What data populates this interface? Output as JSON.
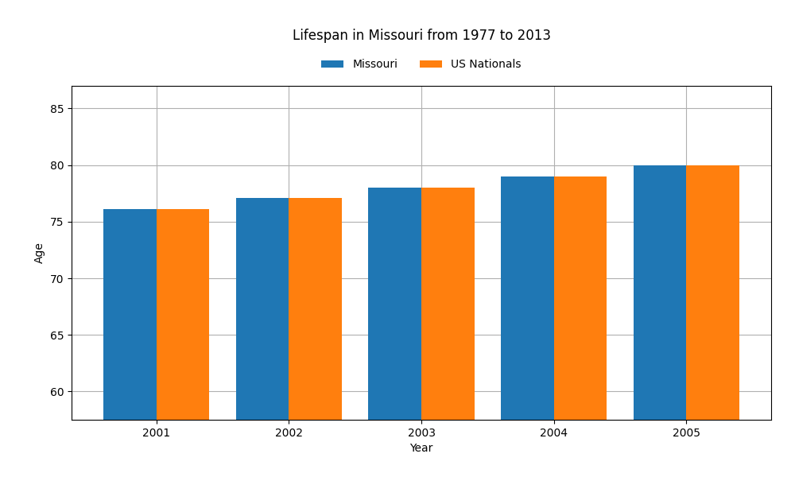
{
  "chart_data": {
    "type": "bar",
    "title": "Lifespan in Missouri from 1977 to 2013",
    "x_label": "Year",
    "y_label": "Age",
    "categories": [
      "2001",
      "2002",
      "2003",
      "2004",
      "2005"
    ],
    "series": [
      {
        "name": "Missouri",
        "values": [
          76.1,
          77.1,
          78.0,
          79.0,
          80.0
        ]
      },
      {
        "name": "US Nationals",
        "values": [
          76.1,
          77.1,
          78.0,
          79.0,
          80.0
        ]
      }
    ],
    "ylim": [
      57.5,
      87
    ],
    "yticks": [
      60,
      65,
      70,
      75,
      80,
      85
    ],
    "grid": true,
    "legend": "upper center"
  }
}
